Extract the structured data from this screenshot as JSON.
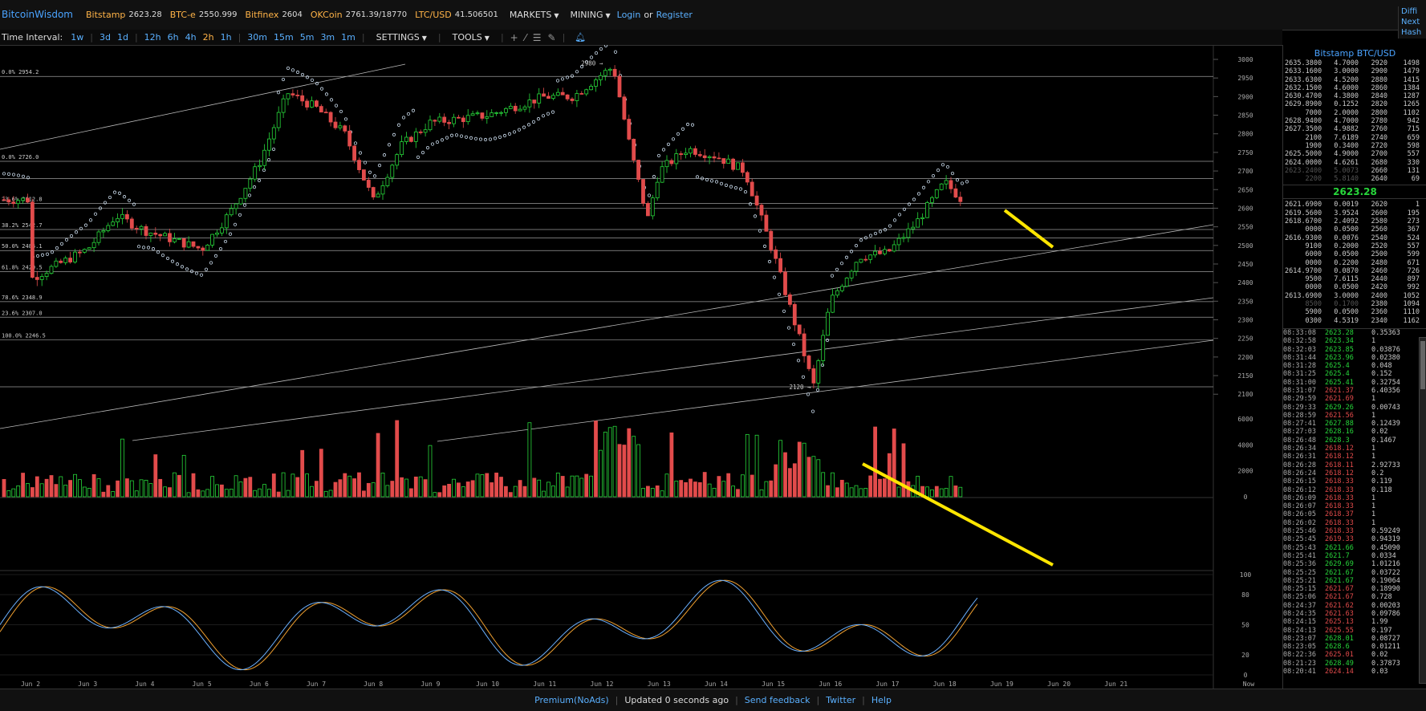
{
  "brand": "BitcoinWisdom",
  "tickers": [
    {
      "name": "Bitstamp",
      "value": "2623.28"
    },
    {
      "name": "BTC-e",
      "value": "2550.999"
    },
    {
      "name": "Bitfinex",
      "value": "2604"
    },
    {
      "name": "OKCoin",
      "value": "2761.39/18770"
    },
    {
      "name": "LTC/USD",
      "value": "41.506501"
    }
  ],
  "menus": {
    "markets": "MARKETS",
    "mining": "MINING",
    "login": "Login",
    "or": "or",
    "register": "Register"
  },
  "right_cut": [
    "Diffi",
    "Next",
    "Hash"
  ],
  "toolbar": {
    "time_label": "Time Interval:",
    "intervals": [
      "1w",
      "3d",
      "1d",
      "12h",
      "6h",
      "4h",
      "2h",
      "1h",
      "30m",
      "15m",
      "5m",
      "3m",
      "1m"
    ],
    "active_interval": "2h",
    "settings": "SETTINGS",
    "tools": "TOOLS"
  },
  "icons": {
    "bell": "bell-icon",
    "plus": "crosshair-icon",
    "line": "line-tool-icon",
    "fib": "fib-tool-icon",
    "pen": "pen-icon"
  },
  "chart_data": {
    "type": "candlestick",
    "title": "",
    "y_axis_ticks": [
      3000,
      2950,
      2900,
      2850,
      2800,
      2750,
      2700,
      2650,
      2600,
      2550,
      2500,
      2450,
      2400,
      2350,
      2300,
      2250,
      2200,
      2150,
      2100
    ],
    "x_axis_labels": [
      "Jun 2",
      "Jun 3",
      "Jun 4",
      "Jun 5",
      "Jun 6",
      "Jun 7",
      "Jun 8",
      "Jun 9",
      "Jun 10",
      "Jun 11",
      "Jun 12",
      "Jun 13",
      "Jun 14",
      "Jun 15",
      "Jun 16",
      "Jun 17",
      "Jun 18",
      "Jun 19",
      "Jun 20",
      "Jun 21",
      "Now"
    ],
    "annotations": {
      "high": "2980",
      "low": "2120"
    },
    "fib_levels": [
      {
        "label": "0.0% 2954.2",
        "value": 2954.2
      },
      {
        "label": "0.0% 2726.0",
        "value": 2726.0
      },
      {
        "label": "23.6% 2612.8",
        "value": 2612.8
      },
      {
        "label": "38.2% 2542.7",
        "value": 2542.7
      },
      {
        "label": "50.0% 2486.1",
        "value": 2486.1
      },
      {
        "label": "61.8% 2429.5",
        "value": 2429.5
      },
      {
        "label": "78.6% 2348.9",
        "value": 2348.9
      },
      {
        "label": "23.6% 2307.0",
        "value": 2307.0
      },
      {
        "label": "100.0% 2246.5",
        "value": 2246.5
      }
    ],
    "extra_levels": [
      2680,
      2600,
      2520,
      2120
    ],
    "close_path": [
      [
        "Jun 2",
        2410
      ],
      [
        "Jun 3",
        2490
      ],
      [
        "Jun 3.5",
        2580
      ],
      [
        "Jun 4",
        2540
      ],
      [
        "Jun 5",
        2490
      ],
      [
        "Jun 5.5",
        2590
      ],
      [
        "Jun 6",
        2720
      ],
      [
        "Jun 6.5",
        2910
      ],
      [
        "Jun 7",
        2870
      ],
      [
        "Jun 7.5",
        2800
      ],
      [
        "Jun 8",
        2620
      ],
      [
        "Jun 8.5",
        2770
      ],
      [
        "Jun 9",
        2830
      ],
      [
        "Jun 9.5",
        2840
      ],
      [
        "Jun 10",
        2850
      ],
      [
        "Jun 11",
        2900
      ],
      [
        "Jun 11.5",
        2900
      ],
      [
        "Jun 12",
        2960
      ],
      [
        "Jun 12.2",
        2980
      ],
      [
        "Jun 12.5",
        2760
      ],
      [
        "Jun 12.8",
        2570
      ],
      [
        "Jun 13",
        2700
      ],
      [
        "Jun 13.5",
        2760
      ],
      [
        "Jun 14",
        2740
      ],
      [
        "Jun 14.5",
        2700
      ],
      [
        "Jun 15",
        2480
      ],
      [
        "Jun 15.5",
        2230
      ],
      [
        "Jun 15.7",
        2120
      ],
      [
        "Jun 16",
        2350
      ],
      [
        "Jun 16.5",
        2470
      ],
      [
        "Jun 17",
        2480
      ],
      [
        "Jun 17.5",
        2560
      ],
      [
        "Jun 18",
        2670
      ],
      [
        "Jun 18.3",
        2623
      ]
    ],
    "volume_axis": [
      6000,
      4000,
      2000,
      0
    ],
    "stoch_axis": [
      100,
      80,
      50,
      20,
      0
    ]
  },
  "orderbook": {
    "title": "Bitstamp BTC/USD",
    "asks": [
      [
        "2635.3800",
        "4.7000",
        "2920",
        "1498"
      ],
      [
        "2633.1600",
        "3.0000",
        "2900",
        "1479"
      ],
      [
        "2633.6300",
        "4.5200",
        "2880",
        "1415"
      ],
      [
        "2632.1500",
        "4.6000",
        "2860",
        "1384"
      ],
      [
        "2630.4700",
        "4.3800",
        "2840",
        "1287"
      ],
      [
        "2629.8900",
        "0.1252",
        "2820",
        "1265"
      ],
      [
        "7000",
        "2.0000",
        "2800",
        "1102"
      ],
      [
        "2628.9400",
        "4.7000",
        "2780",
        "942"
      ],
      [
        "2627.3500",
        "4.9882",
        "2760",
        "715"
      ],
      [
        "2100",
        "7.6189",
        "2740",
        "659"
      ],
      [
        "1900",
        "0.3400",
        "2720",
        "598"
      ],
      [
        "2625.5000",
        "4.9000",
        "2700",
        "557"
      ],
      [
        "2624.0000",
        "4.6261",
        "2680",
        "330"
      ],
      [
        "2623.2400",
        "5.0073",
        "2660",
        "131"
      ],
      [
        "2200",
        "5.8140",
        "2640",
        "69"
      ]
    ],
    "last_price": "2623.28",
    "bids": [
      [
        "2621.6900",
        "0.0019",
        "2620",
        "1"
      ],
      [
        "2619.5600",
        "3.9524",
        "2600",
        "195"
      ],
      [
        "2618.6700",
        "2.4092",
        "2580",
        "273"
      ],
      [
        "0000",
        "0.0500",
        "2560",
        "367"
      ],
      [
        "2616.9300",
        "0.0076",
        "2540",
        "524"
      ],
      [
        "9100",
        "0.2000",
        "2520",
        "557"
      ],
      [
        "6000",
        "0.0500",
        "2500",
        "599"
      ],
      [
        "0000",
        "0.2200",
        "2480",
        "671"
      ],
      [
        "2614.9700",
        "0.0870",
        "2460",
        "726"
      ],
      [
        "9500",
        "7.6115",
        "2440",
        "897"
      ],
      [
        "0000",
        "0.0500",
        "2420",
        "992"
      ],
      [
        "2613.6900",
        "3.0000",
        "2400",
        "1052"
      ],
      [
        "8500",
        "0.1700",
        "2380",
        "1094"
      ],
      [
        "5900",
        "0.0500",
        "2360",
        "1110"
      ],
      [
        "0300",
        "4.5319",
        "2340",
        "1162"
      ]
    ]
  },
  "trades": [
    [
      "08:33:08",
      "2623.28",
      "up",
      "0.35363"
    ],
    [
      "08:32:58",
      "2623.34",
      "up",
      "1"
    ],
    [
      "08:32:03",
      "2623.85",
      "up",
      "0.03876"
    ],
    [
      "08:31:44",
      "2623.96",
      "up",
      "0.02380"
    ],
    [
      "08:31:28",
      "2625.4",
      "up",
      "0.048"
    ],
    [
      "08:31:25",
      "2625.4",
      "up",
      "0.152"
    ],
    [
      "08:31:00",
      "2625.41",
      "up",
      "0.32754"
    ],
    [
      "08:31:07",
      "2621.37",
      "dn",
      "6.40356"
    ],
    [
      "08:29:59",
      "2621.69",
      "dn",
      "1"
    ],
    [
      "08:29:33",
      "2629.26",
      "up",
      "0.00743"
    ],
    [
      "08:28:59",
      "2621.56",
      "dn",
      "1"
    ],
    [
      "08:27:41",
      "2627.88",
      "up",
      "0.12439"
    ],
    [
      "08:27:03",
      "2628.16",
      "up",
      "0.02"
    ],
    [
      "08:26:48",
      "2628.3",
      "up",
      "0.1467"
    ],
    [
      "08:26:34",
      "2618.12",
      "dn",
      "1"
    ],
    [
      "08:26:31",
      "2618.12",
      "dn",
      "1"
    ],
    [
      "08:26:28",
      "2618.11",
      "dn",
      "2.92733"
    ],
    [
      "08:26:24",
      "2618.12",
      "dn",
      "0.2"
    ],
    [
      "08:26:15",
      "2618.33",
      "dn",
      "0.119"
    ],
    [
      "08:26:12",
      "2618.33",
      "dn",
      "0.118"
    ],
    [
      "08:26:09",
      "2618.33",
      "dn",
      "1"
    ],
    [
      "08:26:07",
      "2618.33",
      "dn",
      "1"
    ],
    [
      "08:26:05",
      "2618.37",
      "dn",
      "1"
    ],
    [
      "08:26:02",
      "2618.33",
      "dn",
      "1"
    ],
    [
      "08:25:46",
      "2618.33",
      "dn",
      "0.59249"
    ],
    [
      "08:25:45",
      "2619.33",
      "dn",
      "0.94319"
    ],
    [
      "08:25:43",
      "2621.66",
      "up",
      "0.45090"
    ],
    [
      "08:25:41",
      "2621.7",
      "up",
      "0.0334"
    ],
    [
      "08:25:36",
      "2629.69",
      "up",
      "1.01216"
    ],
    [
      "08:25:25",
      "2621.67",
      "up",
      "0.03722"
    ],
    [
      "08:25:21",
      "2621.67",
      "up",
      "0.19064"
    ],
    [
      "08:25:15",
      "2621.67",
      "dn",
      "0.18990"
    ],
    [
      "08:25:06",
      "2621.67",
      "dn",
      "0.728"
    ],
    [
      "08:24:37",
      "2621.62",
      "dn",
      "0.00203"
    ],
    [
      "08:24:35",
      "2621.63",
      "dn",
      "0.09786"
    ],
    [
      "08:24:15",
      "2625.13",
      "dn",
      "1.99"
    ],
    [
      "08:24:13",
      "2625.55",
      "dn",
      "0.197"
    ],
    [
      "08:23:07",
      "2628.01",
      "up",
      "0.08727"
    ],
    [
      "08:23:05",
      "2628.6",
      "up",
      "0.01211"
    ],
    [
      "08:22:36",
      "2625.01",
      "dn",
      "0.02"
    ],
    [
      "08:21:23",
      "2628.49",
      "up",
      "0.37873"
    ],
    [
      "08:20:41",
      "2624.14",
      "dn",
      "0.03"
    ]
  ],
  "footer": {
    "premium": "Premium(NoAds)",
    "status": "Updated 0 seconds ago",
    "feedback": "Send feedback",
    "twitter": "Twitter",
    "help": "Help"
  },
  "colors": {
    "up": "#27d63a",
    "down": "#e24b4b",
    "accent": "#4aa3ff",
    "highlight": "#ffe600"
  }
}
